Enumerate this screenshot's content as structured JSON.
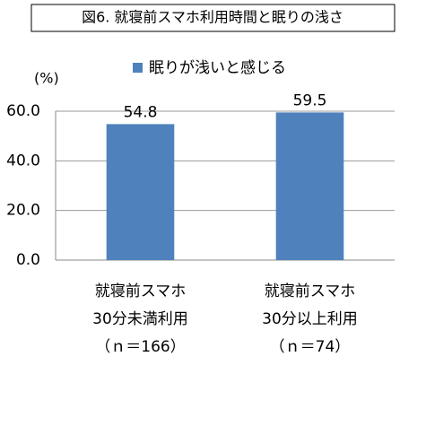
{
  "chart_data": {
    "type": "bar",
    "title": "図6. 就寝前スマホ利用時間と眠りの浅さ",
    "y_axis_label": "(%)",
    "categories": [
      [
        "就寝前スマホ",
        "30分未満利用",
        "（ｎ＝166）"
      ],
      [
        "就寝前スマホ",
        "30分以上利用",
        "（ｎ＝74）"
      ]
    ],
    "series": [
      {
        "name": "眠りが浅いと感じる",
        "color": "#4f81bd",
        "values": [
          54.8,
          59.5
        ]
      }
    ],
    "ylim": [
      0,
      60
    ],
    "yticks": [
      {
        "value": 0,
        "label": "0.0"
      },
      {
        "value": 20,
        "label": "20.0"
      },
      {
        "value": 40,
        "label": "40.0"
      },
      {
        "value": 60,
        "label": "60.0"
      }
    ],
    "grid": true
  }
}
